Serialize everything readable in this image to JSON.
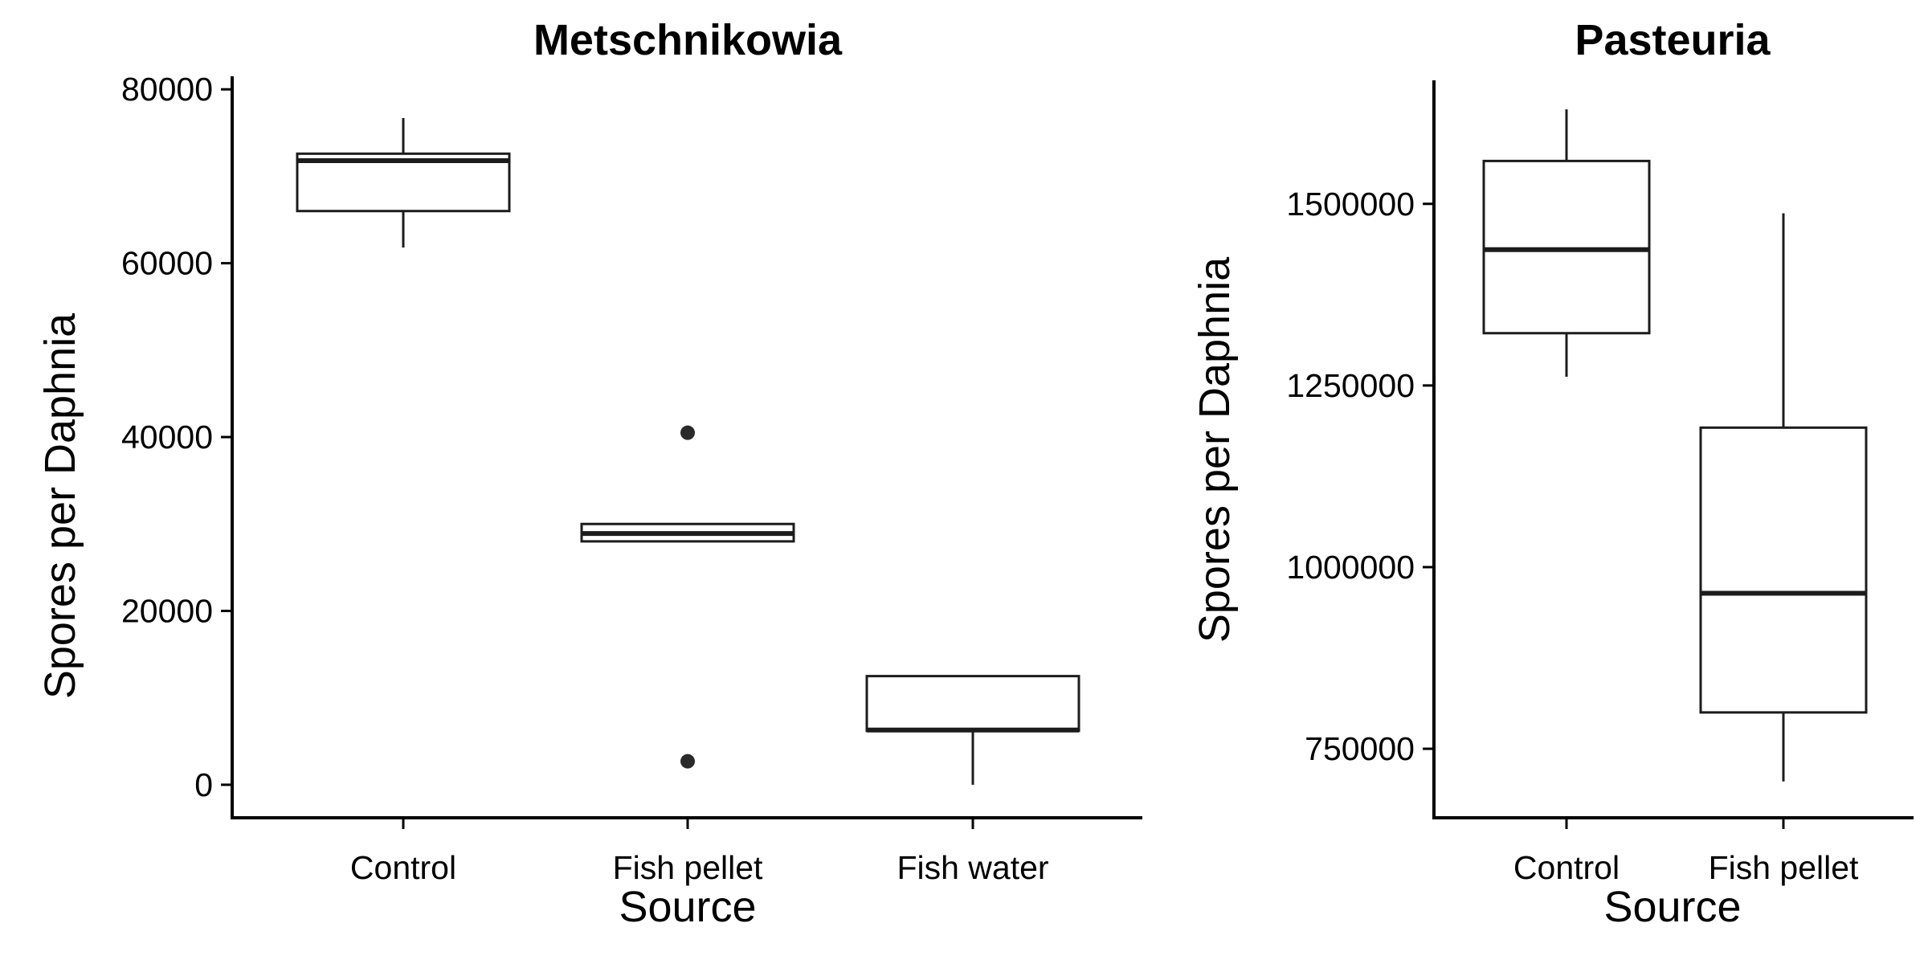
{
  "chart_data": [
    {
      "type": "box",
      "title": "Metschnikowia",
      "xlabel": "Source",
      "ylabel": "Spores per Daphnia",
      "ylim": [
        -3800,
        81500
      ],
      "yticks": [
        0,
        20000,
        40000,
        60000,
        80000
      ],
      "yticks_labels": [
        "0",
        "20000",
        "40000",
        "60000",
        "80000"
      ],
      "categories": [
        "Control",
        "Fish pellet",
        "Fish water"
      ],
      "boxes": [
        {
          "category": "Control",
          "whisker_low": 61800,
          "q1": 66000,
          "median": 71800,
          "q3": 72600,
          "whisker_high": 76700,
          "outliers": []
        },
        {
          "category": "Fish pellet",
          "whisker_low": 28000,
          "q1": 28000,
          "median": 28900,
          "q3": 30000,
          "whisker_high": 30000,
          "outliers": [
            40500,
            2700
          ]
        },
        {
          "category": "Fish water",
          "whisker_low": 0,
          "q1": 6200,
          "median": 6300,
          "q3": 12500,
          "whisker_high": 12500,
          "outliers": []
        }
      ]
    },
    {
      "type": "box",
      "title": "Pasteuria",
      "xlabel": "Source",
      "ylabel": "Spores per Daphnia",
      "ylim": [
        655000,
        1670000
      ],
      "yticks": [
        750000,
        1000000,
        1250000,
        1500000
      ],
      "yticks_labels": [
        "750000",
        "1000000",
        "1250000",
        "1500000"
      ],
      "categories": [
        "Control",
        "Fish pellet"
      ],
      "boxes": [
        {
          "category": "Control",
          "whisker_low": 1262000,
          "q1": 1322000,
          "median": 1437000,
          "q3": 1559000,
          "whisker_high": 1630000,
          "outliers": []
        },
        {
          "category": "Fish pellet",
          "whisker_low": 705000,
          "q1": 800000,
          "median": 964000,
          "q3": 1192000,
          "whisker_high": 1487000,
          "outliers": []
        }
      ]
    }
  ]
}
